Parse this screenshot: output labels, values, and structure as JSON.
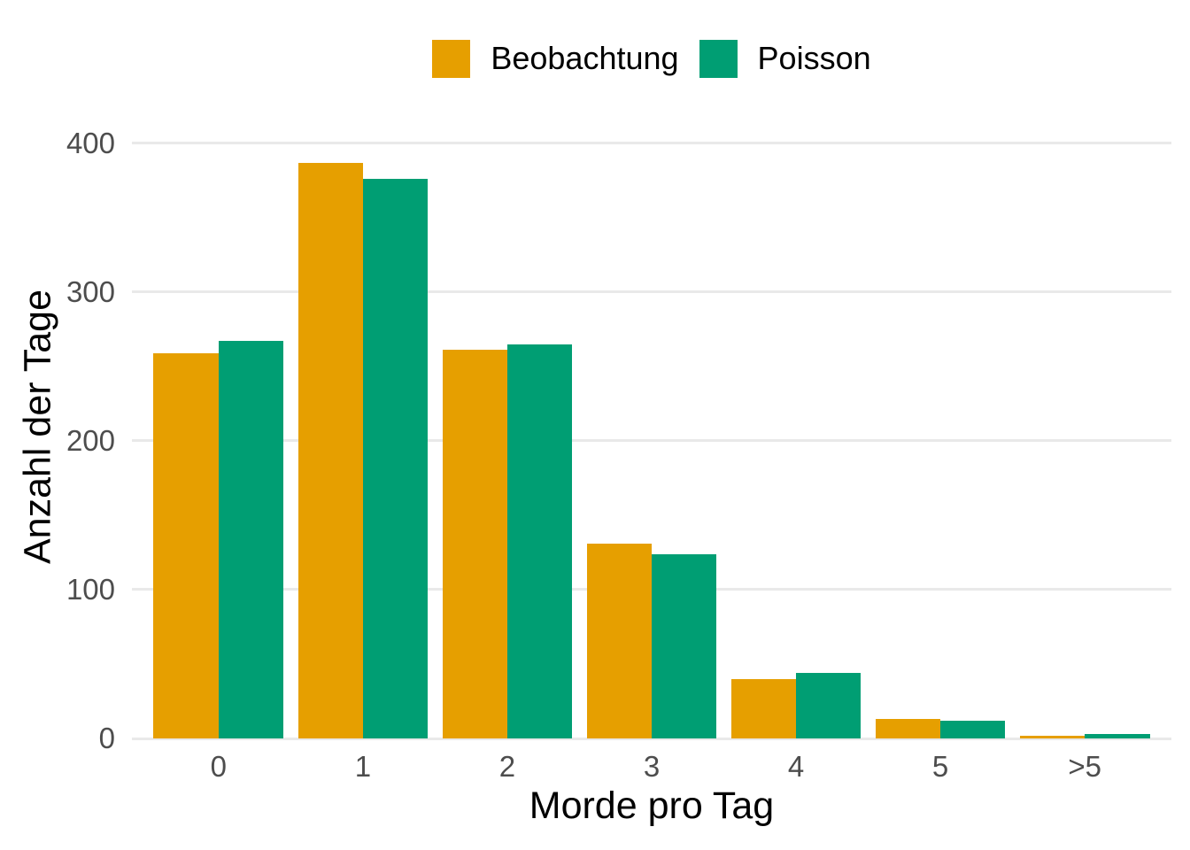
{
  "figure": {
    "background": "#FFFFFF"
  },
  "legend": {
    "position": "top-center",
    "items": [
      {
        "label": "Beobachtung",
        "color": "#E69F00"
      },
      {
        "label": "Poisson",
        "color": "#009E73"
      }
    ]
  },
  "chart_data": {
    "type": "bar",
    "title": "",
    "categories": [
      "0",
      "1",
      "2",
      "3",
      "4",
      "5",
      ">5"
    ],
    "series": [
      {
        "name": "Beobachtung",
        "color": "#E69F00",
        "values": [
          259,
          387,
          261,
          131,
          40,
          13,
          2
        ]
      },
      {
        "name": "Poisson",
        "color": "#009E73",
        "values": [
          267,
          376,
          265,
          124,
          44,
          12,
          3
        ]
      }
    ],
    "xlabel": "Morde pro Tag",
    "ylabel": "Anzahl der Tage",
    "ylim": [
      0,
      419
    ],
    "yticks": [
      0,
      100,
      200,
      300,
      400
    ],
    "grid": "horizontal-major-only",
    "legend_position": "top",
    "bar_layout": "dodged",
    "colors": {
      "grid": "#E9E9E9",
      "tick_text": "#4D4D4D",
      "axis_title_text": "#000000",
      "panel_background": "#FFFFFF"
    }
  }
}
